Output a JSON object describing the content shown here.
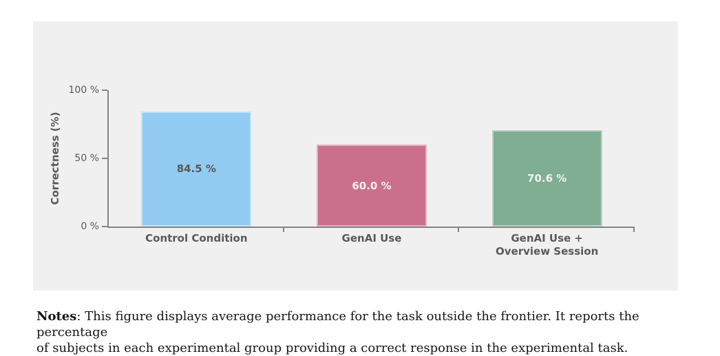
{
  "chart_data": {
    "type": "bar",
    "title": "",
    "categories": [
      "Control Condition",
      "GenAI Use",
      "GenAI Use +\nOverview Session"
    ],
    "values": [
      84.5,
      60.0,
      70.6
    ],
    "bar_labels": [
      "84.5 %",
      "60.0 %",
      "70.6 %"
    ],
    "bar_colors": [
      "#92cbf2",
      "#ca708d",
      "#80ae93"
    ],
    "value_label_colors": [
      "#595959",
      "#f3f1f2",
      "#f3f1f2"
    ],
    "xlabel": "",
    "ylabel": "Correctness (%)",
    "ylim": [
      0,
      100
    ],
    "yticks": [
      {
        "value": 100,
        "label": "100 %"
      },
      {
        "value": 50,
        "label": "50 %"
      },
      {
        "value": 0,
        "label": "0 %"
      }
    ],
    "grid": false,
    "legend": false,
    "axis_color": "#848484",
    "text_color": "#595959",
    "panel_background": "#f0f0f1"
  },
  "caption": {
    "label": "Notes",
    "line1_rest": ": This figure displays average performance for the task outside the frontier. It reports the percentage",
    "line2": "of subjects in each experimental group providing a correct response in the experimental task."
  }
}
